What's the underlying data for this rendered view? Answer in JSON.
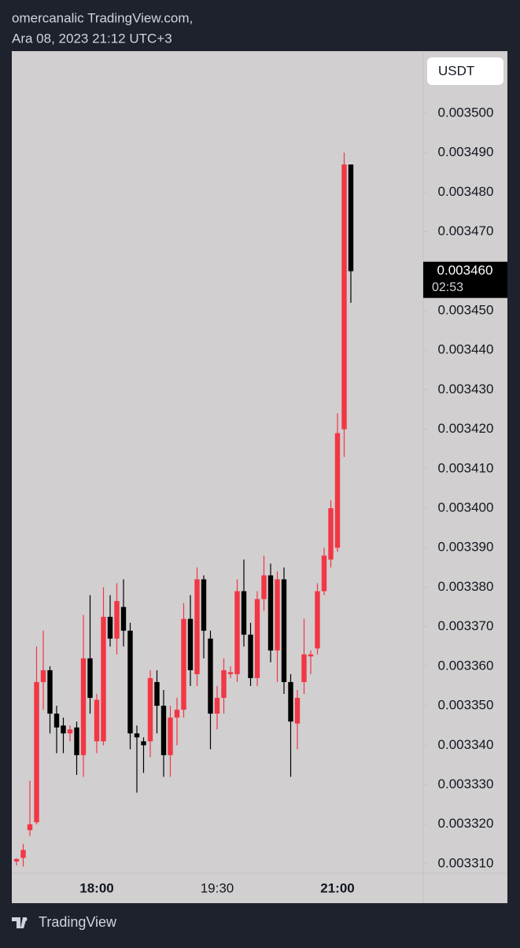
{
  "header": {
    "line1": "omercanalic TradingView.com,",
    "line2": "Ara 08, 2023 21:12 UTC+3"
  },
  "footer": {
    "brand": "TradingView"
  },
  "chart_data": {
    "type": "candlestick",
    "currency": "USDT",
    "up_color": "#f23645",
    "down_color": "#000000",
    "categories": [
      null,
      null,
      null,
      null,
      null,
      null,
      null,
      null,
      null,
      null,
      null,
      null,
      "18:00",
      null,
      null,
      null,
      null,
      null,
      null,
      null,
      null,
      null,
      null,
      null,
      null,
      null,
      null,
      null,
      null,
      null,
      "19:30",
      null,
      null,
      null,
      null,
      null,
      null,
      null,
      null,
      null,
      null,
      null,
      null,
      null,
      null,
      null,
      null,
      null,
      "21:00",
      null,
      null
    ],
    "open": [
      0.0033106,
      0.0033115,
      0.0033185,
      0.0033205,
      0.003356,
      0.003359,
      0.003348,
      0.003345,
      0.003343,
      0.0033445,
      0.0033375,
      0.003362,
      0.003341,
      0.003341,
      0.0033725,
      0.003367,
      0.003375,
      0.003369,
      0.003343,
      0.003341,
      0.003341,
      0.003356,
      0.00335,
      0.0033375,
      0.003347,
      0.003349,
      0.003372,
      0.003358,
      0.003382,
      0.003367,
      0.003348,
      0.003352,
      0.003358,
      0.003358,
      0.003379,
      0.003368,
      0.003357,
      0.003377,
      0.003383,
      0.003364,
      0.003382,
      0.003356,
      0.0033455,
      0.003356,
      0.0033625,
      0.0033645,
      0.003379,
      0.003387,
      0.00339,
      0.00342,
      0.003487
    ],
    "close": [
      0.0033112,
      0.0033135,
      0.00332,
      0.003356,
      0.003359,
      0.003348,
      0.0033445,
      0.003343,
      0.003344,
      0.0033375,
      0.003362,
      0.003352,
      0.0033515,
      0.0033725,
      0.003367,
      0.0033765,
      0.003369,
      0.003343,
      0.003342,
      0.00334,
      0.003357,
      0.00335,
      0.0033375,
      0.003347,
      0.003349,
      0.003372,
      0.003359,
      0.003382,
      0.003369,
      0.003348,
      0.003352,
      0.003359,
      0.0033585,
      0.003379,
      0.003368,
      0.003357,
      0.003377,
      0.003383,
      0.003364,
      0.003382,
      0.003356,
      0.003346,
      0.003352,
      0.003363,
      0.003363,
      0.003379,
      0.003388,
      0.0034,
      0.003419,
      0.003487,
      0.00346
    ],
    "high": [
      0.0033114,
      0.003315,
      0.003331,
      0.003365,
      0.003369,
      0.00336,
      0.00335,
      0.003347,
      0.003345,
      0.003346,
      0.003373,
      0.003378,
      0.003353,
      0.00338,
      0.003378,
      0.003381,
      0.003382,
      0.003371,
      0.003345,
      0.003342,
      0.003359,
      0.003359,
      0.003354,
      0.00335,
      0.003352,
      0.003376,
      0.003378,
      0.003385,
      0.003383,
      0.003369,
      0.003355,
      0.003362,
      0.00336,
      0.003382,
      0.003387,
      0.003371,
      0.003379,
      0.003388,
      0.003386,
      0.003384,
      0.003385,
      0.003358,
      0.003354,
      0.003372,
      0.003364,
      0.003381,
      0.00339,
      0.003402,
      0.003424,
      0.00349,
      0.003487
    ],
    "low": [
      0.0033096,
      0.0033093,
      0.003317,
      0.00332,
      0.003349,
      0.003343,
      0.003338,
      0.003338,
      0.003341,
      0.0033325,
      0.003332,
      0.003348,
      0.003338,
      0.00334,
      0.003365,
      0.003363,
      0.003365,
      0.003339,
      0.003328,
      0.003333,
      0.003337,
      0.003343,
      0.003332,
      0.003332,
      0.00334,
      0.003347,
      0.003355,
      0.003355,
      0.003362,
      0.003339,
      0.003344,
      0.003348,
      0.003357,
      0.003356,
      0.003365,
      0.003355,
      0.003355,
      0.003374,
      0.003361,
      0.003356,
      0.003353,
      0.003332,
      0.003339,
      0.003353,
      0.003358,
      0.003363,
      0.003378,
      0.003385,
      0.003389,
      0.003413,
      0.003452
    ],
    "ylim": [
      0.0033076,
      0.0035157
    ],
    "yticks": [
      {
        "value": 0.00331,
        "label": "0.003310"
      },
      {
        "value": 0.00332,
        "label": "0.003320"
      },
      {
        "value": 0.00333,
        "label": "0.003330"
      },
      {
        "value": 0.00334,
        "label": "0.003340"
      },
      {
        "value": 0.00335,
        "label": "0.003350"
      },
      {
        "value": 0.00336,
        "label": "0.003360"
      },
      {
        "value": 0.00337,
        "label": "0.003370"
      },
      {
        "value": 0.00338,
        "label": "0.003380"
      },
      {
        "value": 0.00339,
        "label": "0.003390"
      },
      {
        "value": 0.0034,
        "label": "0.003400"
      },
      {
        "value": 0.00341,
        "label": "0.003410"
      },
      {
        "value": 0.00342,
        "label": "0.003420"
      },
      {
        "value": 0.00343,
        "label": "0.003430"
      },
      {
        "value": 0.00344,
        "label": "0.003440"
      },
      {
        "value": 0.00345,
        "label": "0.003450"
      },
      {
        "value": 0.00346,
        "label": "0.003460"
      },
      {
        "value": 0.00347,
        "label": "0.003470"
      },
      {
        "value": 0.00348,
        "label": "0.003480"
      },
      {
        "value": 0.00349,
        "label": "0.003490"
      },
      {
        "value": 0.0035,
        "label": "0.003500"
      }
    ],
    "last_price": {
      "value": 0.00346,
      "label": "0.003460"
    },
    "countdown": "02:53"
  }
}
